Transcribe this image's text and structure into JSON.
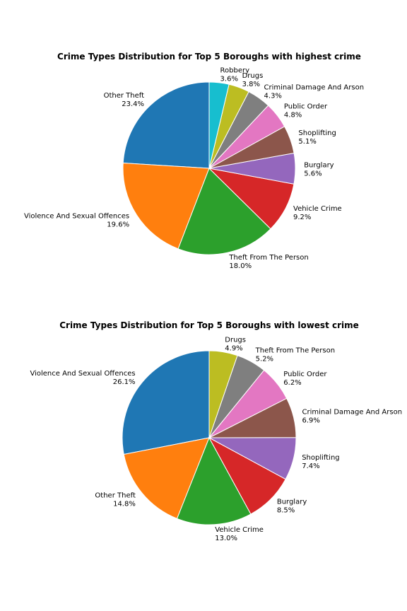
{
  "chart_data": [
    {
      "type": "pie",
      "title": "Crime Types Distribution for Top 5 Boroughs with highest crime",
      "slices": [
        {
          "label": "Other Theft",
          "value": 23.4,
          "pct_label": "23.4%",
          "color": "#1f77b4"
        },
        {
          "label": "Violence And Sexual Offences",
          "value": 19.6,
          "pct_label": "19.6%",
          "color": "#ff7f0e"
        },
        {
          "label": "Theft From The Person",
          "value": 18.0,
          "pct_label": "18.0%",
          "color": "#2ca02c"
        },
        {
          "label": "Vehicle Crime",
          "value": 9.2,
          "pct_label": "9.2%",
          "color": "#d62728"
        },
        {
          "label": "Burglary",
          "value": 5.6,
          "pct_label": "5.6%",
          "color": "#9467bd"
        },
        {
          "label": "Shoplifting",
          "value": 5.1,
          "pct_label": "5.1%",
          "color": "#8c564b"
        },
        {
          "label": "Public Order",
          "value": 4.8,
          "pct_label": "4.8%",
          "color": "#e377c2"
        },
        {
          "label": "Criminal Damage And Arson",
          "value": 4.3,
          "pct_label": "4.3%",
          "color": "#7f7f7f"
        },
        {
          "label": "Drugs",
          "value": 3.8,
          "pct_label": "3.8%",
          "color": "#bcbd22"
        },
        {
          "label": "Robbery",
          "value": 3.6,
          "pct_label": "3.6%",
          "color": "#17becf"
        }
      ]
    },
    {
      "type": "pie",
      "title": "Crime Types Distribution for Top 5 Boroughs with lowest crime",
      "slices": [
        {
          "label": "Violence And Sexual Offences",
          "value": 26.1,
          "pct_label": "26.1%",
          "color": "#1f77b4"
        },
        {
          "label": "Other Theft",
          "value": 14.8,
          "pct_label": "14.8%",
          "color": "#ff7f0e"
        },
        {
          "label": "Vehicle Crime",
          "value": 13.0,
          "pct_label": "13.0%",
          "color": "#2ca02c"
        },
        {
          "label": "Burglary",
          "value": 8.5,
          "pct_label": "8.5%",
          "color": "#d62728"
        },
        {
          "label": "Shoplifting",
          "value": 7.4,
          "pct_label": "7.4%",
          "color": "#9467bd"
        },
        {
          "label": "Criminal Damage And Arson",
          "value": 6.9,
          "pct_label": "6.9%",
          "color": "#8c564b"
        },
        {
          "label": "Public Order",
          "value": 6.2,
          "pct_label": "6.2%",
          "color": "#e377c2"
        },
        {
          "label": "Theft From The Person",
          "value": 5.2,
          "pct_label": "5.2%",
          "color": "#7f7f7f"
        },
        {
          "label": "Drugs",
          "value": 4.9,
          "pct_label": "4.9%",
          "color": "#bcbd22"
        }
      ]
    }
  ]
}
